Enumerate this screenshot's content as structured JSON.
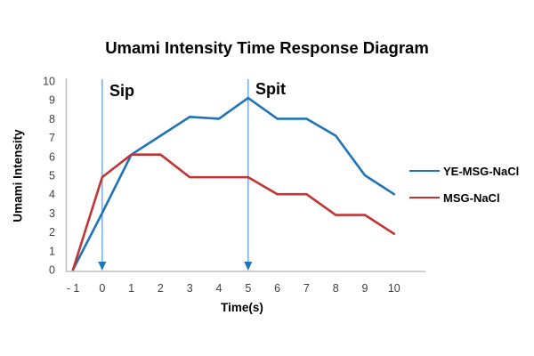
{
  "chart_data": {
    "type": "line",
    "title": "Umami Intensity Time Response Diagram",
    "xlabel": "Time(s)",
    "ylabel": "Umami Intensity",
    "xlim": [
      -1,
      10
    ],
    "ylim": [
      0,
      10
    ],
    "grid": false,
    "legend_position": "right",
    "x": [
      -1,
      0,
      1,
      2,
      3,
      4,
      5,
      6,
      7,
      8,
      9,
      10
    ],
    "x_tick_labels": [
      "- 1",
      "0",
      "1",
      "2",
      "3",
      "4",
      "5",
      "6",
      "7",
      "8",
      "9",
      "10"
    ],
    "y_ticks": [
      0,
      1,
      2,
      3,
      4,
      5,
      6,
      7,
      8,
      9,
      10
    ],
    "series": [
      {
        "name": "YE-MSG-NaCl",
        "color": "#1F74B8",
        "values": [
          0,
          3.0,
          6.1,
          7.1,
          8.1,
          8.0,
          9.1,
          8.0,
          8.0,
          7.1,
          5.0,
          4.0
        ]
      },
      {
        "name": "MSG-NaCl",
        "color": "#C23334",
        "values": [
          0,
          4.9,
          6.1,
          6.1,
          4.9,
          4.9,
          4.9,
          4.0,
          4.0,
          2.9,
          2.9,
          1.9
        ]
      }
    ],
    "annotations": [
      {
        "label": "Sip",
        "x": 0
      },
      {
        "label": "Spit",
        "x": 5
      }
    ],
    "colors": {
      "axis_line": "#BFBFBF",
      "tick_text": "#3F3F3F",
      "arrow_stem": "#7FB2DE",
      "arrow_head": "#1F74B8"
    }
  }
}
